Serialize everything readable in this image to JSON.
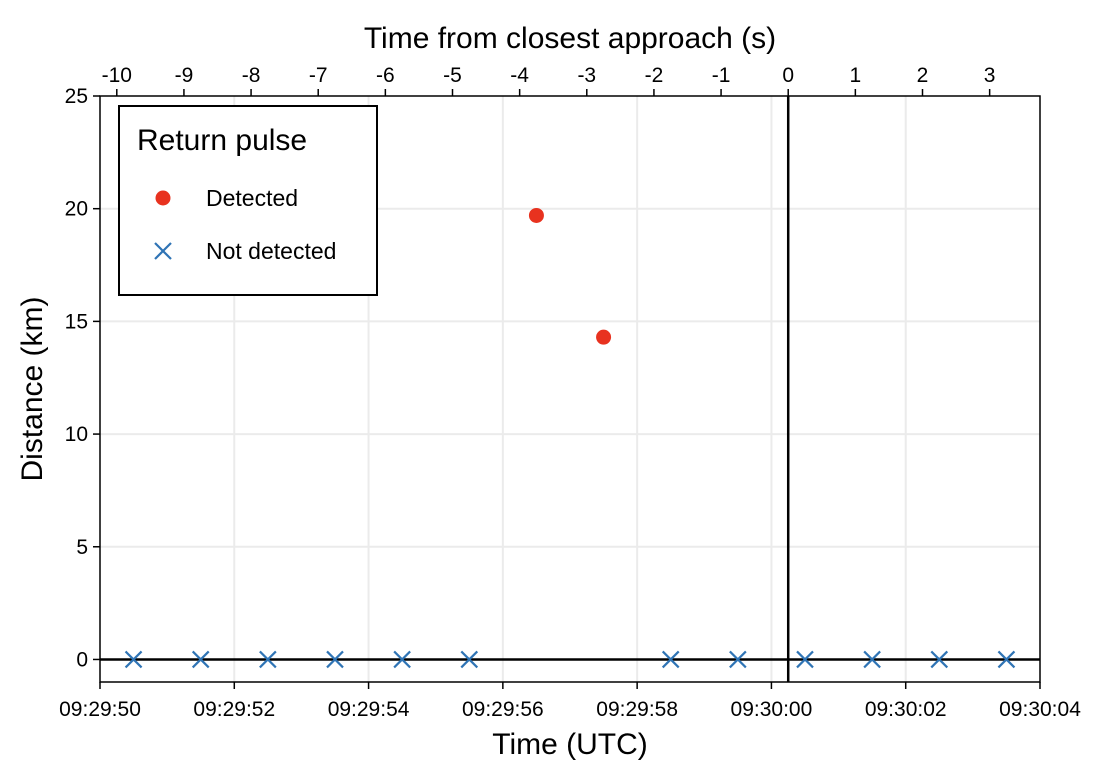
{
  "chart_data": {
    "type": "scatter",
    "xlabel": "Time (UTC)",
    "ylabel": "Distance (km)",
    "top_xlabel": "Time from closest approach (s)",
    "xlim": [
      "09:29:50",
      "09:30:04"
    ],
    "ylim": [
      -1,
      25
    ],
    "x_tick_labels": [
      "09:29:50",
      "09:29:52",
      "09:29:54",
      "09:29:56",
      "09:29:58",
      "09:30:00",
      "09:30:02",
      "09:30:04"
    ],
    "y_tick_labels": [
      "0",
      "5",
      "10",
      "15",
      "20",
      "25"
    ],
    "top_tick_labels": [
      "-10",
      "-9",
      "-8",
      "-7",
      "-6",
      "-5",
      "-4",
      "-3",
      "-2",
      "-1",
      "0",
      "1",
      "2",
      "3"
    ],
    "closest_approach_time": "09:30:00.25",
    "grid": true,
    "legend": {
      "title": "Return pulse",
      "position": "top-left"
    },
    "series": [
      {
        "name": "Detected",
        "marker": "circle",
        "color": "#e8321f",
        "points": [
          {
            "x": "09:29:56.5",
            "y": 19.7
          },
          {
            "x": "09:29:57.5",
            "y": 14.3
          }
        ]
      },
      {
        "name": "Not detected",
        "marker": "x",
        "color": "#2f74b5",
        "points": [
          {
            "x": "09:29:50.5",
            "y": 0
          },
          {
            "x": "09:29:51.5",
            "y": 0
          },
          {
            "x": "09:29:52.5",
            "y": 0
          },
          {
            "x": "09:29:53.5",
            "y": 0
          },
          {
            "x": "09:29:54.5",
            "y": 0
          },
          {
            "x": "09:29:55.5",
            "y": 0
          },
          {
            "x": "09:29:58.5",
            "y": 0
          },
          {
            "x": "09:29:59.5",
            "y": 0
          },
          {
            "x": "09:30:00.5",
            "y": 0
          },
          {
            "x": "09:30:01.5",
            "y": 0
          },
          {
            "x": "09:30:02.5",
            "y": 0
          },
          {
            "x": "09:30:03.5",
            "y": 0
          }
        ]
      }
    ]
  }
}
